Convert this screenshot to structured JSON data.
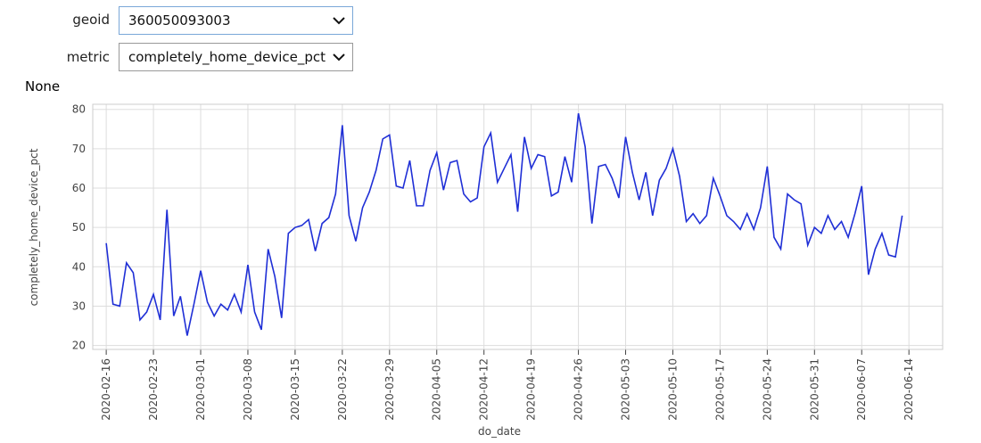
{
  "widgets": {
    "geoid_label": "geoid",
    "geoid_value": "360050093003",
    "metric_label": "metric",
    "metric_value": "completely_home_device_pct",
    "output": "None"
  },
  "chart_data": {
    "type": "line",
    "x_label": "do_date",
    "y_label": "completely_home_device_pct",
    "x": [
      "2020-02-16",
      "2020-02-17",
      "2020-02-18",
      "2020-02-19",
      "2020-02-20",
      "2020-02-21",
      "2020-02-22",
      "2020-02-23",
      "2020-02-24",
      "2020-02-25",
      "2020-02-26",
      "2020-02-27",
      "2020-02-28",
      "2020-02-29",
      "2020-03-01",
      "2020-03-02",
      "2020-03-03",
      "2020-03-04",
      "2020-03-05",
      "2020-03-06",
      "2020-03-07",
      "2020-03-08",
      "2020-03-09",
      "2020-03-10",
      "2020-03-11",
      "2020-03-12",
      "2020-03-13",
      "2020-03-14",
      "2020-03-15",
      "2020-03-16",
      "2020-03-17",
      "2020-03-18",
      "2020-03-19",
      "2020-03-20",
      "2020-03-21",
      "2020-03-22",
      "2020-03-23",
      "2020-03-24",
      "2020-03-25",
      "2020-03-26",
      "2020-03-27",
      "2020-03-28",
      "2020-03-29",
      "2020-03-30",
      "2020-03-31",
      "2020-04-01",
      "2020-04-02",
      "2020-04-03",
      "2020-04-04",
      "2020-04-05",
      "2020-04-06",
      "2020-04-07",
      "2020-04-08",
      "2020-04-09",
      "2020-04-10",
      "2020-04-11",
      "2020-04-12",
      "2020-04-13",
      "2020-04-14",
      "2020-04-15",
      "2020-04-16",
      "2020-04-17",
      "2020-04-18",
      "2020-04-19",
      "2020-04-20",
      "2020-04-21",
      "2020-04-22",
      "2020-04-23",
      "2020-04-24",
      "2020-04-25",
      "2020-04-26",
      "2020-04-27",
      "2020-04-28",
      "2020-04-29",
      "2020-04-30",
      "2020-05-01",
      "2020-05-02",
      "2020-05-03",
      "2020-05-04",
      "2020-05-05",
      "2020-05-06",
      "2020-05-07",
      "2020-05-08",
      "2020-05-09",
      "2020-05-10",
      "2020-05-11",
      "2020-05-12",
      "2020-05-13",
      "2020-05-14",
      "2020-05-15",
      "2020-05-16",
      "2020-05-17",
      "2020-05-18",
      "2020-05-19",
      "2020-05-20",
      "2020-05-21",
      "2020-05-22",
      "2020-05-23",
      "2020-05-24",
      "2020-05-25",
      "2020-05-26",
      "2020-05-27",
      "2020-05-28",
      "2020-05-29",
      "2020-05-30",
      "2020-05-31",
      "2020-06-01",
      "2020-06-02",
      "2020-06-03",
      "2020-06-04",
      "2020-06-05",
      "2020-06-06",
      "2020-06-07",
      "2020-06-08",
      "2020-06-09",
      "2020-06-10",
      "2020-06-11",
      "2020-06-12",
      "2020-06-13"
    ],
    "series": [
      {
        "color": "#1f2fd6",
        "values": [
          46,
          30.5,
          30,
          41,
          38.5,
          26.5,
          28.5,
          33,
          26.5,
          54.5,
          27.5,
          32.5,
          22.5,
          30.5,
          39,
          31,
          27.5,
          30.5,
          29,
          33,
          28.5,
          40.5,
          28.5,
          24,
          44.5,
          37.5,
          27,
          48.5,
          50,
          50.5,
          52,
          44,
          51,
          52.5,
          58.5,
          76,
          53,
          46.5,
          55,
          59,
          64.5,
          72.5,
          73.5,
          60.5,
          60,
          67,
          55.5,
          55.5,
          64.5,
          69,
          59.5,
          66.5,
          67,
          58.5,
          56.5,
          57.5,
          70.5,
          74,
          61.5,
          65,
          68.5,
          54,
          73,
          65,
          68.5,
          68,
          58,
          59,
          68,
          61.5,
          79,
          70.5,
          51,
          65.5,
          66,
          62.5,
          57.5,
          73,
          64,
          57,
          64,
          53,
          62,
          65,
          70,
          63,
          51.5,
          53.5,
          51,
          53,
          62.5,
          58,
          53,
          51.5,
          49.5,
          53.5,
          49.5,
          55,
          65.5,
          47.5,
          44.5,
          58.5,
          57,
          56,
          45.5,
          50,
          48.5,
          53,
          49.5,
          51.5,
          47.5,
          53.5,
          60.5,
          38,
          44.5,
          48.5,
          43,
          42.5,
          53
        ]
      }
    ],
    "xlim": [
      "2020-02-14",
      "2020-06-19"
    ],
    "xticks": [
      "2020-02-16",
      "2020-02-23",
      "2020-03-01",
      "2020-03-08",
      "2020-03-15",
      "2020-03-22",
      "2020-03-29",
      "2020-04-05",
      "2020-04-12",
      "2020-04-19",
      "2020-04-26",
      "2020-05-03",
      "2020-05-10",
      "2020-05-17",
      "2020-05-24",
      "2020-05-31",
      "2020-06-07",
      "2020-06-14"
    ],
    "ylim": [
      19,
      81.3
    ],
    "yticks": [
      20,
      30,
      40,
      50,
      60,
      70,
      80
    ],
    "grid": true
  }
}
